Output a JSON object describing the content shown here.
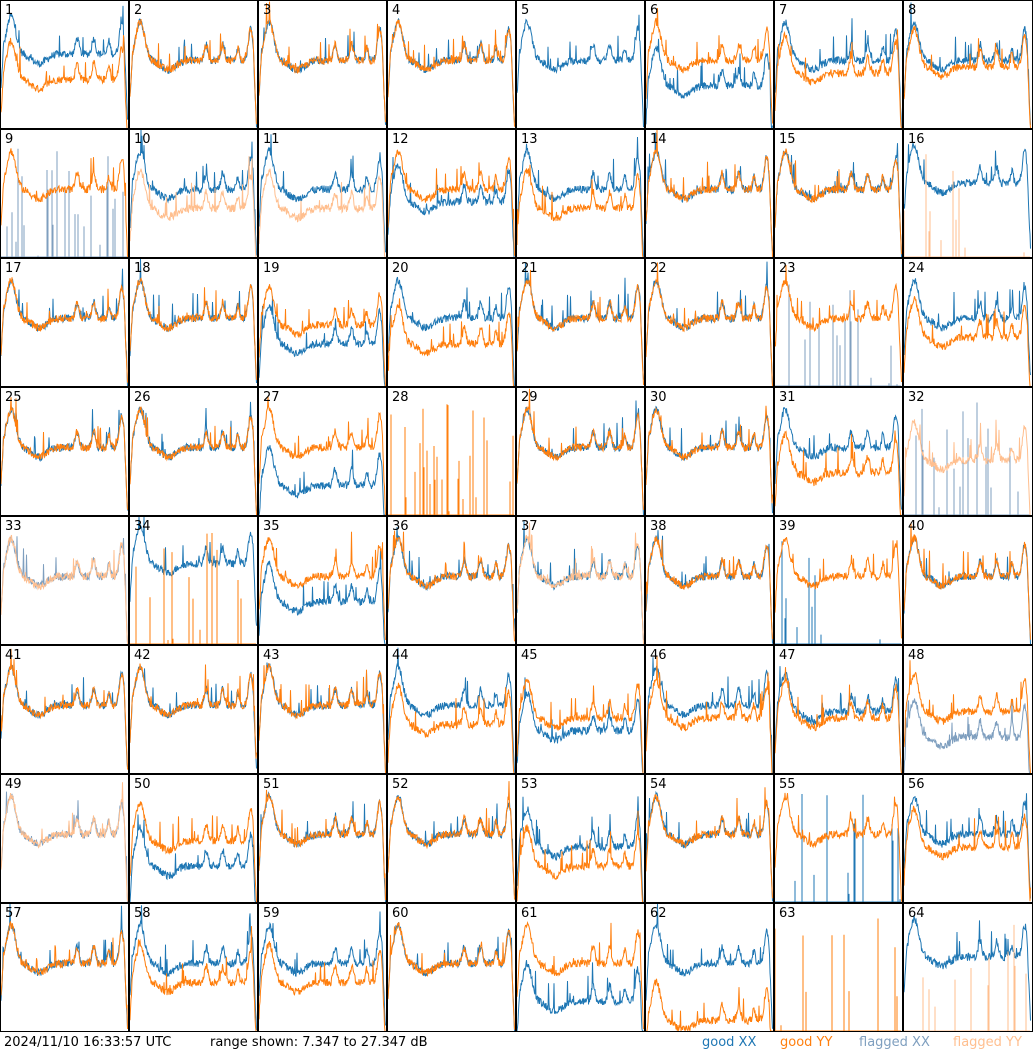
{
  "footer": {
    "timestamp": "2024/11/10 16:33:57 UTC",
    "range": "range shown: 7.347 to 27.347 dB"
  },
  "legend": [
    {
      "label": "good XX",
      "color": "#1f77b4"
    },
    {
      "label": "good YY",
      "color": "#ff7f0e"
    },
    {
      "label": "flagged XX",
      "color": "#7f9fbf"
    },
    {
      "label": "flagged YY",
      "color": "#ffbf8f"
    }
  ],
  "chart_data": {
    "type": "line",
    "ylim": [
      7.347,
      27.347
    ],
    "yunit": "dB",
    "layout": "8x8 grid of small multiples",
    "panels": [
      {
        "n": "1",
        "xx": [
          "good",
          19
        ],
        "yy": [
          "good",
          15
        ]
      },
      {
        "n": "2",
        "xx": [
          "good",
          18
        ],
        "yy": [
          "good",
          18
        ]
      },
      {
        "n": "3",
        "xx": [
          "good",
          18
        ],
        "yy": [
          "good",
          18
        ]
      },
      {
        "n": "4",
        "xx": [
          "good",
          18
        ],
        "yy": [
          "good",
          18
        ]
      },
      {
        "n": "5",
        "xx": [
          "good",
          18
        ],
        "yy": [
          "none",
          0
        ]
      },
      {
        "n": "6",
        "xx": [
          "good",
          14
        ],
        "yy": [
          "good",
          18
        ]
      },
      {
        "n": "7",
        "xx": [
          "good",
          18
        ],
        "yy": [
          "good",
          16
        ]
      },
      {
        "n": "8",
        "xx": [
          "good",
          18
        ],
        "yy": [
          "good",
          17
        ]
      },
      {
        "n": "9",
        "xx": [
          "flagged-spikes",
          0
        ],
        "yy": [
          "good",
          18
        ]
      },
      {
        "n": "10",
        "xx": [
          "good",
          18
        ],
        "yy": [
          "flagged",
          15
        ]
      },
      {
        "n": "11",
        "xx": [
          "good",
          18
        ],
        "yy": [
          "flagged",
          15
        ]
      },
      {
        "n": "12",
        "xx": [
          "good",
          16
        ],
        "yy": [
          "good",
          18
        ]
      },
      {
        "n": "13",
        "xx": [
          "good",
          18
        ],
        "yy": [
          "good",
          15
        ]
      },
      {
        "n": "14",
        "xx": [
          "good",
          18
        ],
        "yy": [
          "good",
          18
        ]
      },
      {
        "n": "15",
        "xx": [
          "good",
          18
        ],
        "yy": [
          "good",
          18
        ]
      },
      {
        "n": "16",
        "xx": [
          "good",
          19
        ],
        "yy": [
          "flagged-spikes",
          0
        ]
      },
      {
        "n": "17",
        "xx": [
          "good",
          18
        ],
        "yy": [
          "good",
          18
        ]
      },
      {
        "n": "18",
        "xx": [
          "good",
          18
        ],
        "yy": [
          "good",
          18
        ]
      },
      {
        "n": "19",
        "xx": [
          "good",
          14
        ],
        "yy": [
          "good",
          17
        ]
      },
      {
        "n": "20",
        "xx": [
          "good",
          18
        ],
        "yy": [
          "good",
          14
        ]
      },
      {
        "n": "21",
        "xx": [
          "good",
          18
        ],
        "yy": [
          "good",
          18
        ]
      },
      {
        "n": "22",
        "xx": [
          "good",
          18
        ],
        "yy": [
          "good",
          18
        ]
      },
      {
        "n": "23",
        "xx": [
          "flagged-spikes",
          0
        ],
        "yy": [
          "good",
          18
        ]
      },
      {
        "n": "24",
        "xx": [
          "good",
          18
        ],
        "yy": [
          "good",
          15
        ]
      },
      {
        "n": "25",
        "xx": [
          "good",
          18
        ],
        "yy": [
          "good",
          18
        ]
      },
      {
        "n": "26",
        "xx": [
          "good",
          18
        ],
        "yy": [
          "good",
          18
        ]
      },
      {
        "n": "27",
        "xx": [
          "good",
          12
        ],
        "yy": [
          "good",
          18
        ]
      },
      {
        "n": "28",
        "xx": [
          "none",
          0
        ],
        "yy": [
          "good-spikes",
          0
        ]
      },
      {
        "n": "29",
        "xx": [
          "good",
          18
        ],
        "yy": [
          "good",
          18
        ]
      },
      {
        "n": "30",
        "xx": [
          "good",
          18
        ],
        "yy": [
          "good",
          18
        ]
      },
      {
        "n": "31",
        "xx": [
          "good",
          18
        ],
        "yy": [
          "good",
          14
        ]
      },
      {
        "n": "32",
        "xx": [
          "flagged-spikes",
          0
        ],
        "yy": [
          "flagged",
          16
        ]
      },
      {
        "n": "33",
        "xx": [
          "flagged",
          18
        ],
        "yy": [
          "flagged",
          18
        ]
      },
      {
        "n": "34",
        "xx": [
          "good",
          20
        ],
        "yy": [
          "good-spikes",
          0
        ]
      },
      {
        "n": "35",
        "xx": [
          "good",
          14
        ],
        "yy": [
          "good",
          18
        ]
      },
      {
        "n": "36",
        "xx": [
          "good",
          18
        ],
        "yy": [
          "good",
          18
        ]
      },
      {
        "n": "37",
        "xx": [
          "good",
          18
        ],
        "yy": [
          "flagged",
          18
        ]
      },
      {
        "n": "38",
        "xx": [
          "good",
          18
        ],
        "yy": [
          "good",
          18
        ]
      },
      {
        "n": "39",
        "xx": [
          "good-spikes",
          0
        ],
        "yy": [
          "good",
          18
        ]
      },
      {
        "n": "40",
        "xx": [
          "good",
          18
        ],
        "yy": [
          "good",
          18
        ]
      },
      {
        "n": "41",
        "xx": [
          "good",
          18
        ],
        "yy": [
          "good",
          18
        ]
      },
      {
        "n": "42",
        "xx": [
          "good",
          18
        ],
        "yy": [
          "good",
          18
        ]
      },
      {
        "n": "43",
        "xx": [
          "good",
          18
        ],
        "yy": [
          "good",
          18
        ]
      },
      {
        "n": "44",
        "xx": [
          "good",
          18
        ],
        "yy": [
          "good",
          15
        ]
      },
      {
        "n": "45",
        "xx": [
          "good",
          14
        ],
        "yy": [
          "good",
          16
        ]
      },
      {
        "n": "46",
        "xx": [
          "good",
          18
        ],
        "yy": [
          "good",
          16
        ]
      },
      {
        "n": "47",
        "xx": [
          "good",
          17
        ],
        "yy": [
          "good",
          16
        ]
      },
      {
        "n": "48",
        "xx": [
          "flagged",
          13
        ],
        "yy": [
          "good",
          17
        ]
      },
      {
        "n": "49",
        "xx": [
          "flagged",
          18
        ],
        "yy": [
          "flagged",
          18
        ]
      },
      {
        "n": "50",
        "xx": [
          "good",
          13
        ],
        "yy": [
          "good",
          17
        ]
      },
      {
        "n": "51",
        "xx": [
          "good",
          18
        ],
        "yy": [
          "good",
          18
        ]
      },
      {
        "n": "52",
        "xx": [
          "good",
          18
        ],
        "yy": [
          "good",
          18
        ]
      },
      {
        "n": "53",
        "xx": [
          "good",
          16
        ],
        "yy": [
          "good",
          13
        ]
      },
      {
        "n": "54",
        "xx": [
          "good",
          18
        ],
        "yy": [
          "good",
          18
        ]
      },
      {
        "n": "55",
        "xx": [
          "good-spikes",
          0
        ],
        "yy": [
          "good",
          18
        ]
      },
      {
        "n": "56",
        "xx": [
          "good",
          18
        ],
        "yy": [
          "good",
          16
        ]
      },
      {
        "n": "57",
        "xx": [
          "good",
          18
        ],
        "yy": [
          "good",
          18
        ]
      },
      {
        "n": "58",
        "xx": [
          "good",
          18
        ],
        "yy": [
          "good",
          15
        ]
      },
      {
        "n": "59",
        "xx": [
          "good",
          18
        ],
        "yy": [
          "good",
          15
        ]
      },
      {
        "n": "60",
        "xx": [
          "good",
          18
        ],
        "yy": [
          "good",
          18
        ]
      },
      {
        "n": "61",
        "xx": [
          "good",
          12
        ],
        "yy": [
          "good",
          18
        ]
      },
      {
        "n": "62",
        "xx": [
          "good",
          18
        ],
        "yy": [
          "good",
          9
        ]
      },
      {
        "n": "63",
        "xx": [
          "none",
          0
        ],
        "yy": [
          "good-spikes",
          0
        ]
      },
      {
        "n": "64",
        "xx": [
          "good",
          19
        ],
        "yy": [
          "flagged-spikes",
          0
        ]
      }
    ]
  }
}
